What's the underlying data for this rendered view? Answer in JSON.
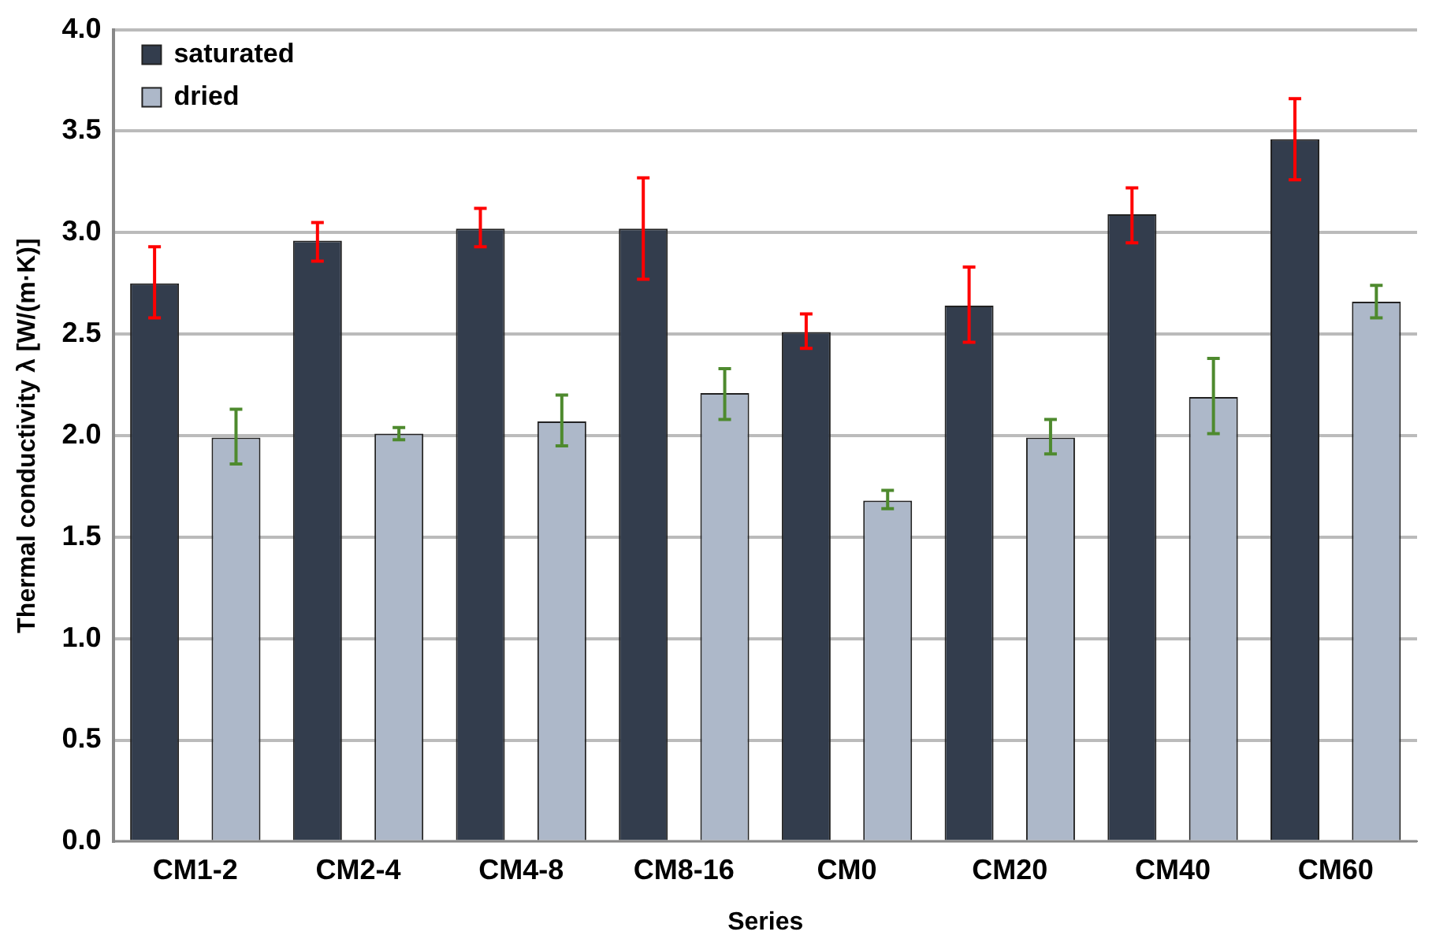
{
  "chart_data": {
    "type": "bar",
    "xlabel": "Series",
    "ylabel": "Thermal conductivity λ [W/(m·K)]",
    "categories": [
      "CM1-2",
      "CM2-4",
      "CM4-8",
      "CM8-16",
      "CM0",
      "CM20",
      "CM40",
      "CM60"
    ],
    "series": [
      {
        "name": "saturated",
        "color": "#333d4d",
        "values": [
          2.75,
          2.96,
          3.02,
          3.02,
          2.51,
          2.64,
          3.09,
          3.46
        ],
        "errors": [
          [
            2.58,
            2.93
          ],
          [
            2.86,
            3.05
          ],
          [
            2.93,
            3.12
          ],
          [
            2.77,
            3.27
          ],
          [
            2.43,
            2.6
          ],
          [
            2.46,
            2.83
          ],
          [
            2.95,
            3.22
          ],
          [
            3.26,
            3.66
          ]
        ]
      },
      {
        "name": "dried",
        "color": "#adb8c9",
        "values": [
          1.99,
          2.01,
          2.07,
          2.21,
          1.68,
          1.99,
          2.19,
          2.66
        ],
        "errors": [
          [
            1.86,
            2.13
          ],
          [
            1.98,
            2.04
          ],
          [
            1.95,
            2.2
          ],
          [
            2.08,
            2.33
          ],
          [
            1.64,
            1.73
          ],
          [
            1.91,
            2.08
          ],
          [
            2.01,
            2.38
          ],
          [
            2.58,
            2.74
          ]
        ]
      }
    ],
    "ylim": [
      0,
      4
    ],
    "yticks": [
      {
        "value": 0,
        "label": "0.0"
      },
      {
        "value": 0.5,
        "label": "0.5"
      },
      {
        "value": 1,
        "label": "1.0"
      },
      {
        "value": 1.5,
        "label": "1.5"
      },
      {
        "value": 2,
        "label": "2.0"
      },
      {
        "value": 2.5,
        "label": "2.5"
      },
      {
        "value": 3,
        "label": "3.0"
      },
      {
        "value": 3.5,
        "label": "3.5"
      },
      {
        "value": 4,
        "label": "4.0"
      }
    ],
    "grid": "y",
    "legend": "top left"
  }
}
